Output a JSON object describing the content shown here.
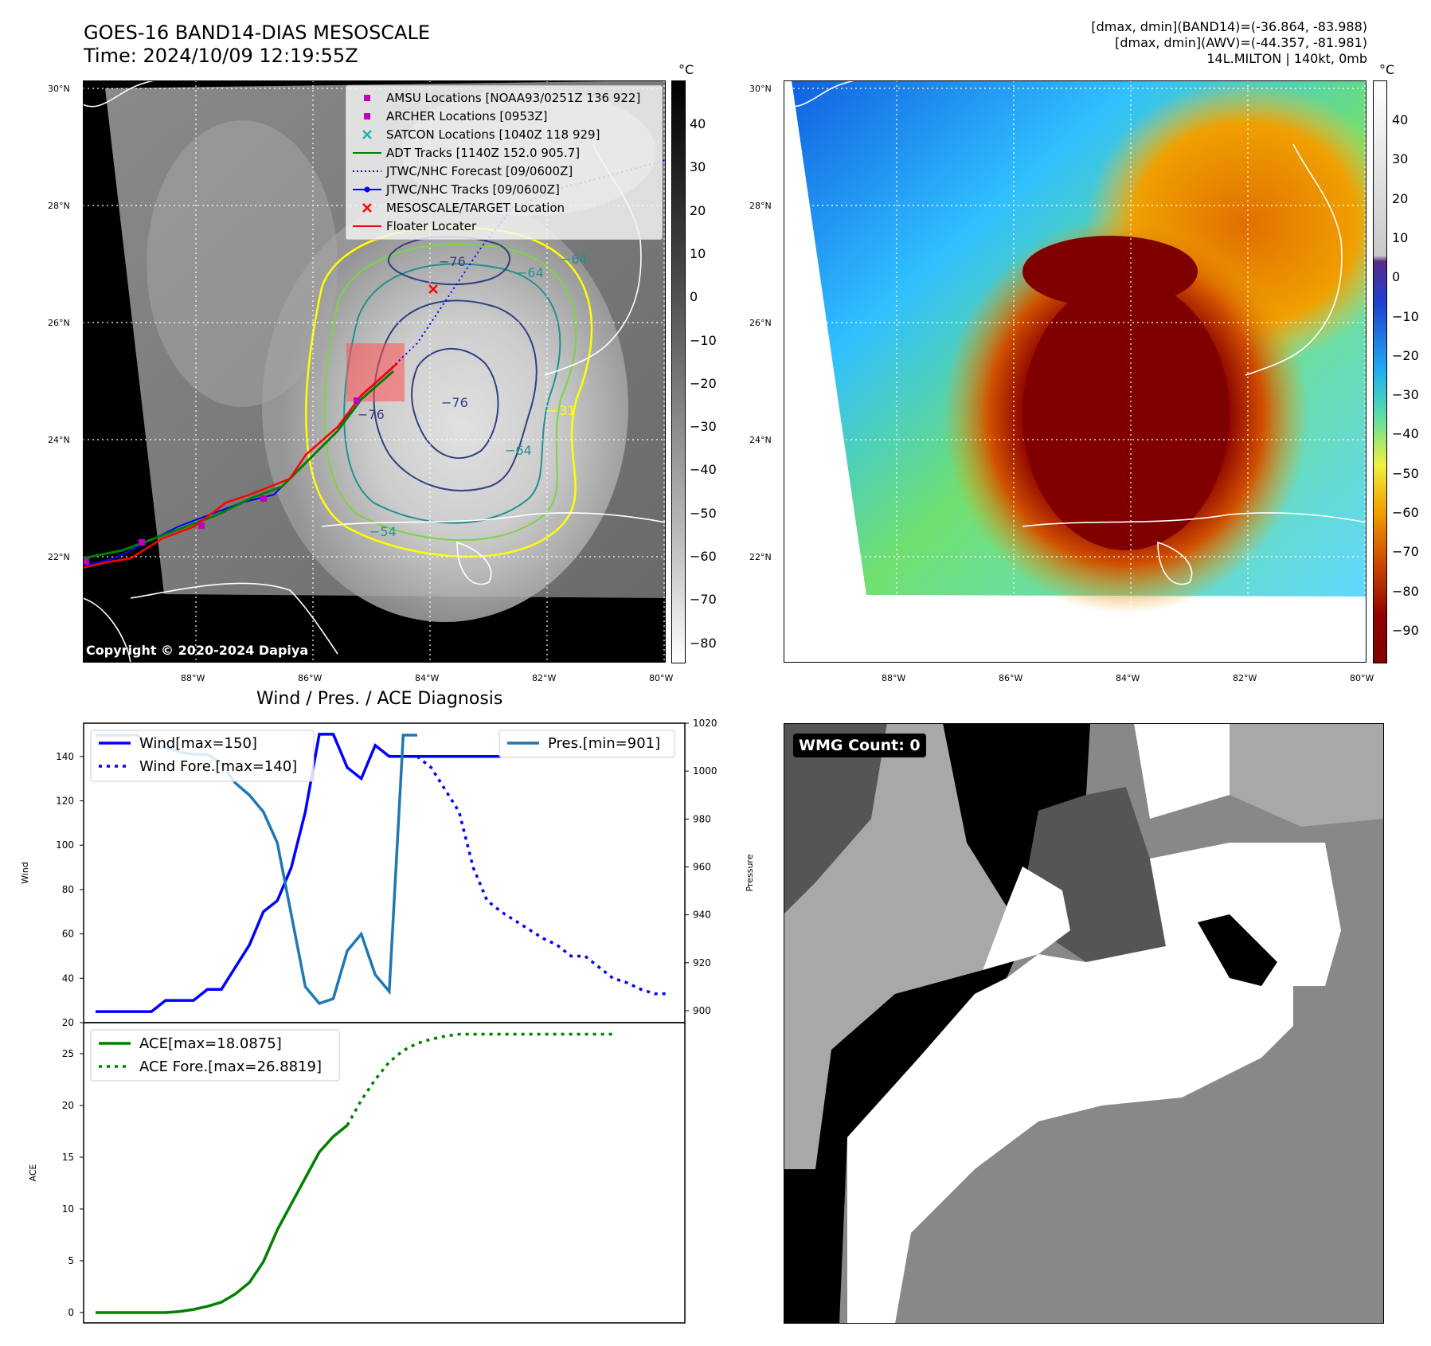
{
  "header": {
    "title_line1": "GOES-16 BAND14-DIAS MESOSCALE",
    "title_line2": "Time: 2024/10/09 12:19:55Z",
    "info_line1": "[dmax, dmin](BAND14)=(-36.864, -83.988)",
    "info_line2": "[dmax, dmin](AWV)=(-44.357, -81.981)",
    "info_line3": "14L.MILTON | 140kt, 0mb"
  },
  "map_left": {
    "copyright": "Copyright © 2020-2024 Dapiya",
    "lat_labels": [
      "30°N",
      "28°N",
      "26°N",
      "24°N",
      "22°N"
    ],
    "lon_labels": [
      "88°W",
      "86°W",
      "84°W",
      "82°W",
      "80°W"
    ],
    "legend": [
      {
        "label": "AMSU Locations [NOAA93/0251Z 136 922]",
        "color": "#c000c0",
        "marker": "square"
      },
      {
        "label": "ARCHER Locations [0953Z]",
        "color": "#c000c0",
        "marker": "square"
      },
      {
        "label": "SATCON Locations [1040Z 118 929]",
        "color": "#20b0b0",
        "marker": "x"
      },
      {
        "label": "ADT Tracks [1140Z 152.0 905.7]",
        "color": "#008000",
        "marker": "line"
      },
      {
        "label": "JTWC/NHC Forecast [09/0600Z]",
        "color": "#0000ff",
        "marker": "dotted"
      },
      {
        "label": "JTWC/NHC Tracks [09/0600Z]",
        "color": "#0000ff",
        "marker": "line-dot"
      },
      {
        "label": "MESOSCALE/TARGET Location",
        "color": "#ff0000",
        "marker": "x"
      },
      {
        "label": "Floater Locater",
        "color": "#ff0000",
        "marker": "line"
      }
    ],
    "contour_labels": [
      "−76",
      "−64",
      "−64",
      "−76",
      "−76",
      "−54",
      "−31",
      "−64"
    ],
    "colorbar_unit": "°C",
    "colorbar_ticks": [
      "40",
      "30",
      "20",
      "10",
      "0",
      "−10",
      "−20",
      "−30",
      "−40",
      "−50",
      "−60",
      "−70",
      "−80"
    ]
  },
  "map_right": {
    "lat_labels": [
      "30°N",
      "28°N",
      "26°N",
      "24°N",
      "22°N"
    ],
    "lon_labels": [
      "88°W",
      "86°W",
      "84°W",
      "82°W",
      "80°W"
    ],
    "colorbar_unit": "°C",
    "colorbar_ticks": [
      "40",
      "30",
      "20",
      "10",
      "0",
      "−10",
      "−20",
      "−30",
      "−40",
      "−50",
      "−60",
      "−70",
      "−80",
      "−90"
    ]
  },
  "wmg": {
    "label": "WMG Count: 0"
  },
  "chart_data": [
    {
      "type": "line",
      "title": "Wind / Pres. / ACE Diagnosis",
      "ylabel": "Wind",
      "ylabel_right": "Pressure",
      "ylim": [
        20,
        155
      ],
      "ylim_right": [
        895,
        1020
      ],
      "yticks": [
        20,
        40,
        60,
        80,
        100,
        120,
        140
      ],
      "yticks_right": [
        900,
        920,
        940,
        960,
        980,
        1000,
        1020
      ],
      "series": [
        {
          "name": "Wind[max=150]",
          "color": "#0000ff",
          "style": "solid",
          "axis": "left",
          "x": [
            0,
            1,
            2,
            3,
            4,
            5,
            6,
            7,
            8,
            9,
            10,
            11,
            12,
            13,
            14,
            15,
            16,
            17,
            18,
            19,
            20,
            21,
            22,
            23,
            24,
            25,
            26,
            27,
            28,
            29
          ],
          "values": [
            25,
            25,
            25,
            25,
            25,
            30,
            30,
            30,
            35,
            35,
            45,
            55,
            70,
            75,
            90,
            115,
            150,
            150,
            135,
            130,
            145,
            140,
            140,
            140,
            140,
            140,
            140,
            140,
            140,
            140
          ]
        },
        {
          "name": "Wind Fore.[max=140]",
          "color": "#0000ff",
          "style": "dotted",
          "axis": "left",
          "x": [
            23,
            24,
            25,
            26,
            27,
            28,
            29,
            30,
            31,
            32,
            33,
            34,
            35,
            36,
            37,
            38,
            39,
            40,
            41
          ],
          "values": [
            140,
            135,
            125,
            115,
            90,
            75,
            70,
            66,
            62,
            58,
            55,
            50,
            50,
            45,
            40,
            38,
            35,
            33,
            33
          ]
        },
        {
          "name": "Pres.[min=901]",
          "color": "#1f77b4",
          "style": "solid",
          "axis": "right",
          "x": [
            0,
            1,
            2,
            3,
            4,
            5,
            6,
            7,
            8,
            9,
            10,
            11,
            12,
            13,
            14,
            15,
            16,
            17,
            18,
            19,
            20,
            21,
            22,
            23
          ],
          "values": [
            1015,
            1015,
            1015,
            1015,
            1010,
            1010,
            1008,
            1007,
            1007,
            1003,
            995,
            990,
            983,
            970,
            940,
            910,
            903,
            905,
            925,
            932,
            915,
            908,
            1015,
            1015
          ]
        }
      ]
    },
    {
      "type": "line",
      "ylabel": "ACE",
      "ylim": [
        -1,
        28
      ],
      "yticks": [
        0,
        5,
        10,
        15,
        20,
        25
      ],
      "series": [
        {
          "name": "ACE[max=18.0875]",
          "color": "#008000",
          "style": "solid",
          "x": [
            0,
            1,
            2,
            3,
            4,
            5,
            6,
            7,
            8,
            9,
            10,
            11,
            12,
            13,
            14,
            15,
            16,
            17,
            18
          ],
          "values": [
            0,
            0,
            0,
            0,
            0,
            0,
            0.1,
            0.3,
            0.6,
            1.0,
            1.8,
            2.9,
            4.9,
            8.0,
            10.5,
            13.0,
            15.5,
            17.0,
            18.0875
          ]
        },
        {
          "name": "ACE Fore.[max=26.8819]",
          "color": "#008000",
          "style": "dotted",
          "x": [
            18,
            19,
            20,
            21,
            22,
            23,
            24,
            25,
            26,
            27,
            28,
            29,
            30,
            31,
            32,
            33,
            34,
            35,
            36,
            37
          ],
          "values": [
            18.0875,
            20.5,
            22.5,
            24.2,
            25.3,
            26.0,
            26.4,
            26.7,
            26.8819,
            26.8819,
            26.8819,
            26.8819,
            26.8819,
            26.8819,
            26.8819,
            26.8819,
            26.8819,
            26.8819,
            26.8819,
            26.8819
          ]
        }
      ]
    }
  ]
}
